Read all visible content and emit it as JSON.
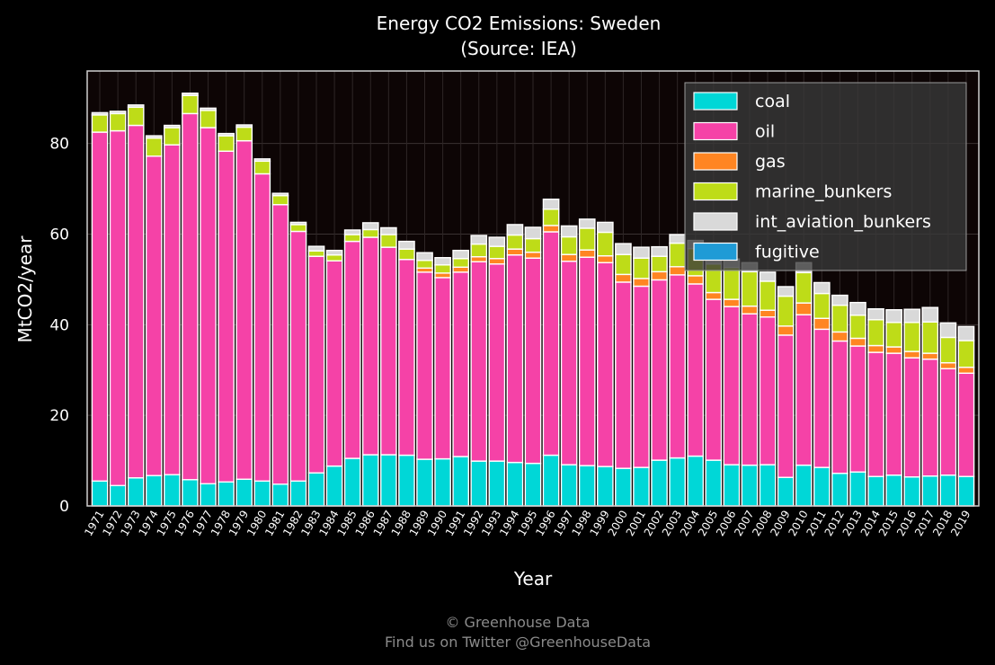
{
  "chart_data": {
    "type": "bar",
    "stacked": true,
    "title": "Energy CO2 Emissions: Sweden",
    "subtitle": "(Source: IEA)",
    "xlabel": "Year",
    "ylabel": "MtCO2/year",
    "ylim": [
      0,
      96
    ],
    "yticks": [
      0,
      20,
      40,
      60,
      80
    ],
    "grid": true,
    "legend_position": "top-right",
    "categories": [
      "1971",
      "1972",
      "1973",
      "1974",
      "1975",
      "1976",
      "1977",
      "1978",
      "1979",
      "1980",
      "1981",
      "1982",
      "1983",
      "1984",
      "1985",
      "1986",
      "1987",
      "1988",
      "1989",
      "1990",
      "1991",
      "1992",
      "1993",
      "1994",
      "1995",
      "1996",
      "1997",
      "1998",
      "1999",
      "2000",
      "2001",
      "2002",
      "2003",
      "2004",
      "2005",
      "2006",
      "2007",
      "2008",
      "2009",
      "2010",
      "2011",
      "2012",
      "2013",
      "2014",
      "2015",
      "2016",
      "2017",
      "2018",
      "2019"
    ],
    "series": [
      {
        "name": "coal",
        "color": "#00d7d7",
        "values": [
          5.5,
          4.5,
          6.2,
          6.7,
          6.9,
          5.8,
          4.9,
          5.3,
          5.9,
          5.5,
          4.8,
          5.5,
          7.3,
          8.8,
          10.5,
          11.3,
          11.3,
          11.2,
          10.3,
          10.4,
          10.9,
          9.9,
          9.9,
          9.6,
          9.4,
          11.2,
          9.1,
          8.9,
          8.7,
          8.3,
          8.5,
          10.1,
          10.6,
          11.0,
          10.1,
          9.1,
          9.0,
          9.1,
          6.3,
          9.0,
          8.5,
          7.2,
          7.5,
          6.5,
          6.8,
          6.4,
          6.6,
          6.8,
          6.5
        ]
      },
      {
        "name": "oil",
        "color": "#f542a7",
        "values": [
          77.0,
          78.3,
          77.8,
          70.5,
          72.8,
          80.8,
          78.6,
          73.0,
          74.7,
          67.8,
          61.7,
          55.1,
          47.8,
          45.3,
          47.9,
          48.0,
          45.8,
          43.2,
          41.3,
          40.0,
          40.7,
          44.0,
          43.5,
          45.8,
          45.3,
          49.3,
          44.9,
          46.0,
          45.0,
          41.1,
          40.0,
          39.8,
          40.4,
          38.0,
          35.5,
          34.9,
          33.4,
          32.6,
          31.4,
          33.2,
          30.5,
          29.2,
          27.8,
          27.4,
          26.9,
          26.3,
          25.8,
          23.5,
          22.8
        ]
      },
      {
        "name": "gas",
        "color": "#ff8522",
        "values": [
          0,
          0,
          0,
          0,
          0,
          0,
          0,
          0,
          0,
          0,
          0,
          0,
          0,
          0,
          0,
          0,
          0,
          0,
          0.9,
          1.0,
          1.1,
          1.1,
          1.2,
          1.3,
          1.3,
          1.4,
          1.5,
          1.6,
          1.5,
          1.7,
          1.7,
          1.8,
          1.8,
          1.8,
          1.5,
          1.6,
          1.7,
          1.5,
          2.0,
          2.6,
          2.4,
          2.0,
          1.7,
          1.5,
          1.4,
          1.4,
          1.3,
          1.3,
          1.3
        ]
      },
      {
        "name": "marine_bunkers",
        "color": "#bedc18",
        "values": [
          3.8,
          3.8,
          4.0,
          4.0,
          3.8,
          4.0,
          3.8,
          3.4,
          3.0,
          2.8,
          2.0,
          1.5,
          1.2,
          1.3,
          1.5,
          1.7,
          2.8,
          2.3,
          1.7,
          1.8,
          1.9,
          2.8,
          2.7,
          3.1,
          3.0,
          3.6,
          3.9,
          4.8,
          5.2,
          4.4,
          4.5,
          3.4,
          5.2,
          6.0,
          6.3,
          7.0,
          7.6,
          6.4,
          6.6,
          6.7,
          5.5,
          5.9,
          5.1,
          5.7,
          5.4,
          6.4,
          6.9,
          5.6,
          5.9
        ]
      },
      {
        "name": "int_aviation_bunkers",
        "color": "#d9d9d9",
        "values": [
          0.5,
          0.5,
          0.5,
          0.5,
          0.5,
          0.5,
          0.5,
          0.5,
          0.5,
          0.5,
          0.5,
          0.5,
          1.0,
          1.0,
          1.0,
          1.5,
          1.5,
          1.7,
          1.7,
          1.6,
          1.8,
          1.9,
          2.0,
          2.3,
          2.5,
          2.2,
          2.4,
          2.0,
          2.2,
          2.4,
          2.4,
          2.1,
          1.9,
          1.8,
          1.8,
          1.9,
          2.0,
          2.0,
          2.1,
          2.2,
          2.4,
          2.2,
          2.8,
          2.4,
          2.8,
          2.9,
          3.2,
          3.2,
          3.1
        ]
      },
      {
        "name": "fugitive",
        "color": "#1f9bd6",
        "values": [
          0,
          0,
          0,
          0,
          0,
          0,
          0,
          0,
          0,
          0,
          0,
          0,
          0,
          0,
          0,
          0,
          0,
          0,
          0,
          0,
          0,
          0,
          0,
          0,
          0,
          0,
          0,
          0,
          0,
          0,
          0,
          0,
          0,
          0,
          0,
          0,
          0,
          0,
          0,
          0,
          0,
          0,
          0,
          0,
          0,
          0,
          0,
          0,
          0
        ]
      }
    ]
  },
  "footer": {
    "copyright": "© Greenhouse Data",
    "twitter": "Find us on Twitter @GreenhouseData"
  }
}
